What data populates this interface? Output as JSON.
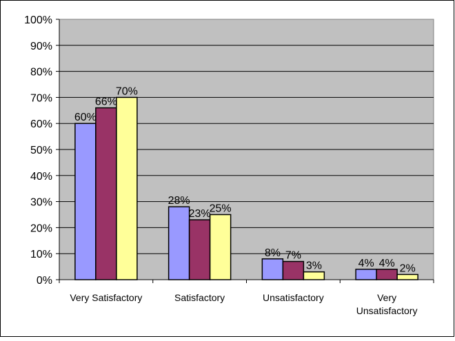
{
  "chart_data": {
    "type": "bar",
    "title": "",
    "xlabel": "",
    "ylabel": "",
    "categories": [
      [
        "Very Satisfactory"
      ],
      [
        "Satisfactory"
      ],
      [
        "Unsatisfactory"
      ],
      [
        "Very",
        "Unsatisfactory"
      ]
    ],
    "series": [
      {
        "values": [
          60,
          28,
          8,
          4
        ],
        "labels": [
          "60%",
          "28%",
          "8%",
          "4%"
        ],
        "color": "#9999ff"
      },
      {
        "values": [
          66,
          23,
          7,
          4
        ],
        "labels": [
          "66%",
          "23%",
          "7%",
          "4%"
        ],
        "color": "#993366"
      },
      {
        "values": [
          70,
          25,
          3,
          2
        ],
        "labels": [
          "70%",
          "25%",
          "3%",
          "2%"
        ],
        "color": "#ffff99"
      }
    ],
    "ylim": [
      0,
      100
    ],
    "yticks": [
      "0%",
      "10%",
      "20%",
      "30%",
      "40%",
      "50%",
      "60%",
      "70%",
      "80%",
      "90%",
      "100%"
    ],
    "grid": true,
    "legend": "none",
    "plot_background": "#c0c0c0"
  }
}
